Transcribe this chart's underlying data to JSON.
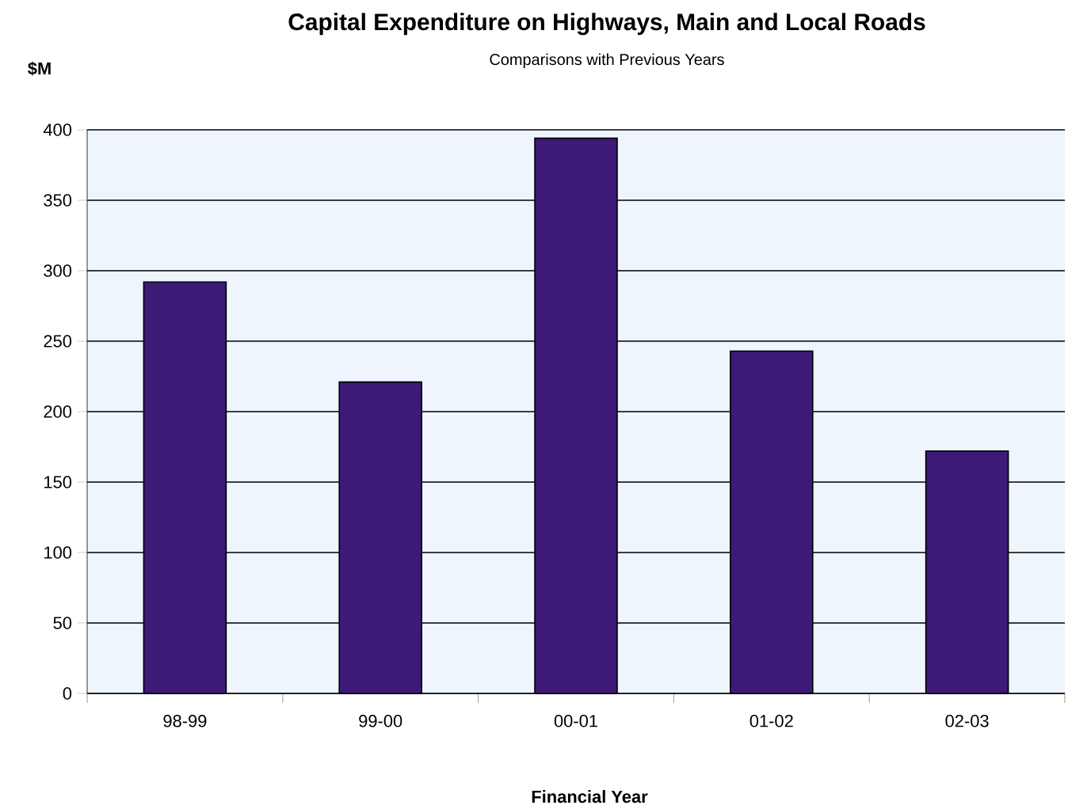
{
  "chart_data": {
    "type": "bar",
    "title": "Capital Expenditure on Highways, Main and Local Roads",
    "subtitle": "Comparisons with Previous Years",
    "ylabel": "$M",
    "xlabel": "Financial Year",
    "categories": [
      "98-99",
      "99-00",
      "00-01",
      "01-02",
      "02-03"
    ],
    "values": [
      292,
      221,
      394,
      243,
      172
    ],
    "color": "#3d1a78",
    "ylim": [
      0,
      400
    ],
    "yticks": [
      0,
      50,
      100,
      150,
      200,
      250,
      300,
      350,
      400
    ],
    "grid": "y"
  }
}
